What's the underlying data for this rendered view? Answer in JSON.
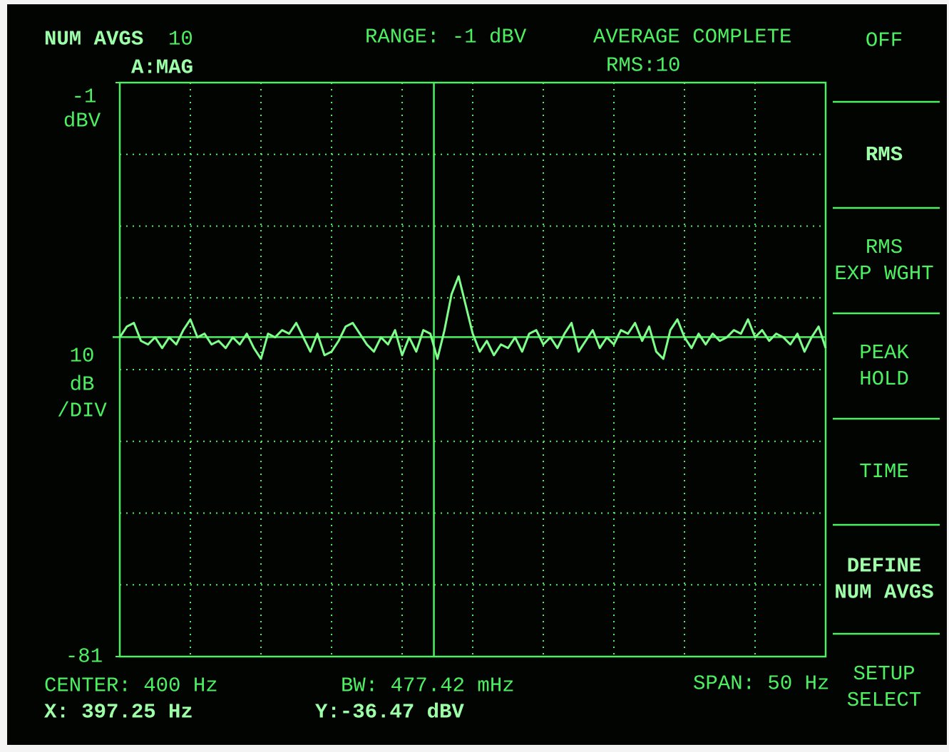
{
  "chart_data": {
    "type": "line",
    "header": {
      "num_avgs_label": "NUM AVGS",
      "num_avgs": "10",
      "trace": "A:MAG",
      "range": "RANGE: -1 dBV",
      "status": "AVERAGE COMPLETE",
      "mode": "RMS:10"
    },
    "ylabel": "dBV",
    "y_scale": [
      "10",
      "dB",
      "/DIV"
    ],
    "ylim": [
      -81,
      -1
    ],
    "yticks": [
      -1,
      -81
    ],
    "xlim": [
      375,
      425
    ],
    "footer": {
      "center": "CENTER: 400 Hz",
      "bw": "BW: 477.42 mHz",
      "span": "SPAN: 50 Hz"
    },
    "marker": {
      "x": 397.25,
      "y": -36.47,
      "x_label": "X: 397.25 Hz",
      "y_label": "Y:-36.47 dBV"
    },
    "color": "#7dff8a",
    "x": [
      375,
      375.5,
      376,
      376.5,
      377,
      377.5,
      378,
      378.5,
      379,
      379.5,
      380,
      380.5,
      381,
      381.5,
      382,
      382.5,
      383,
      383.5,
      384,
      384.5,
      385,
      385.5,
      386,
      386.5,
      387,
      387.5,
      388,
      388.5,
      389,
      389.5,
      390,
      390.5,
      391,
      391.5,
      392,
      392.5,
      393,
      393.5,
      394,
      394.5,
      395,
      395.5,
      396,
      396.5,
      397,
      397.5,
      398,
      398.5,
      399,
      399.5,
      400,
      400.5,
      401,
      401.5,
      402,
      402.5,
      403,
      403.5,
      404,
      404.5,
      405,
      405.5,
      406,
      406.5,
      407,
      407.5,
      408,
      408.5,
      409,
      409.5,
      410,
      410.5,
      411,
      411.5,
      412,
      412.5,
      413,
      413.5,
      414,
      414.5,
      415,
      415.5,
      416,
      416.5,
      417,
      417.5,
      418,
      418.5,
      419,
      419.5,
      420,
      420.5,
      421,
      421.5,
      422,
      422.5,
      423,
      423.5,
      424,
      424.5,
      425
    ],
    "values": [
      -36.5,
      -35,
      -34.5,
      -37,
      -37.5,
      -36.5,
      -38,
      -36.5,
      -37.5,
      -35.5,
      -34,
      -36.5,
      -36,
      -37.5,
      -37,
      -38,
      -36.5,
      -37.5,
      -36,
      -38,
      -39.5,
      -36,
      -36.5,
      -35.5,
      -36,
      -34.5,
      -36.5,
      -38.5,
      -36,
      -39,
      -38.5,
      -37,
      -35,
      -34.5,
      -36,
      -37.5,
      -38.5,
      -36.5,
      -37.5,
      -35.5,
      -39,
      -36.5,
      -38.5,
      -35.5,
      -36,
      -39.5,
      -35.5,
      -30.5,
      -28,
      -32,
      -36,
      -38.5,
      -37,
      -39,
      -37.5,
      -38,
      -36.5,
      -38.5,
      -36,
      -35.5,
      -37.5,
      -36.5,
      -38,
      -36,
      -34.5,
      -38.5,
      -37,
      -35.5,
      -38,
      -36.5,
      -37.5,
      -35.5,
      -36,
      -34.5,
      -37,
      -35,
      -38.5,
      -39.5,
      -35.5,
      -34,
      -36.5,
      -38,
      -36,
      -37.5,
      -36,
      -37,
      -36.5,
      -35.5,
      -36,
      -34,
      -36.5,
      -35.5,
      -37,
      -36,
      -36.5,
      -37.5,
      -36,
      -38.5,
      -36.5,
      -35,
      -38
    ],
    "softkeys": [
      [
        "OFF"
      ],
      [
        "RMS"
      ],
      [
        "RMS",
        "EXP WGHT"
      ],
      [
        "PEAK",
        "HOLD"
      ],
      [
        "TIME"
      ],
      [
        "DEFINE",
        "NUM AVGS"
      ],
      [
        "SETUP",
        "SELECT"
      ]
    ]
  }
}
